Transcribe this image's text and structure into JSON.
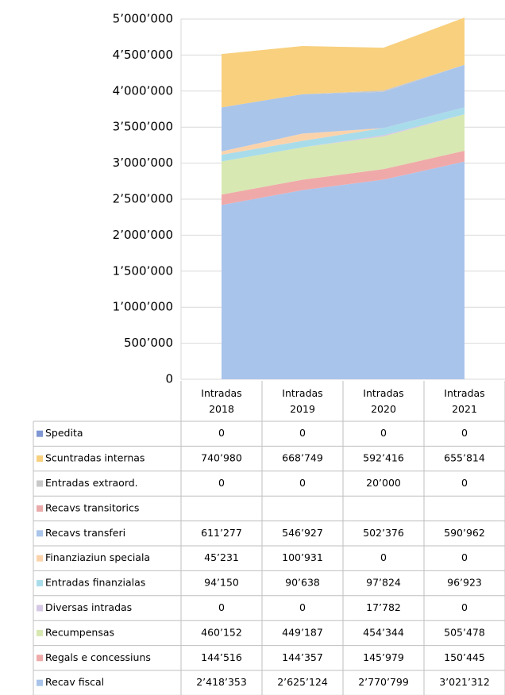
{
  "chart_data": {
    "type": "stacked_area",
    "categories": [
      "Intradas 2018",
      "Intradas 2019",
      "Intradas 2020",
      "Intradas 2021"
    ],
    "ylim": [
      0,
      5000000
    ],
    "yticks": [
      0,
      {
        "value": 500000,
        "label": "500’000"
      },
      {
        "value": 1000000,
        "label": "1’000’000"
      },
      {
        "value": 1500000,
        "label": "1’500’000"
      },
      {
        "value": 2000000,
        "label": "2’000’000"
      },
      {
        "value": 2500000,
        "label": "2’500’000"
      },
      {
        "value": 3000000,
        "label": "3’000’000"
      },
      {
        "value": 3500000,
        "label": "3’500’000"
      },
      {
        "value": 4000000,
        "label": "4’000’000"
      },
      {
        "value": 4500000,
        "label": "4’500’000"
      },
      {
        "value": 5000000,
        "label": "5’000’000"
      }
    ],
    "grid": true,
    "series": [
      {
        "name": "Recav fiscal",
        "color": "#a9c4eb",
        "values": [
          2418353,
          2625124,
          2770799,
          3021312
        ],
        "value_labels": [
          "2’418’353",
          "2’625’124",
          "2’770’799",
          "3’021’312"
        ]
      },
      {
        "name": "Regals e concessiuns",
        "color": "#f0a9a9",
        "values": [
          144516,
          144357,
          145979,
          150445
        ],
        "value_labels": [
          "144’516",
          "144’357",
          "145’979",
          "150’445"
        ]
      },
      {
        "name": "Recumpensas",
        "color": "#d7e8b2",
        "values": [
          460152,
          449187,
          454344,
          505478
        ],
        "value_labels": [
          "460’152",
          "449’187",
          "454’344",
          "505’478"
        ]
      },
      {
        "name": "Diversas intradas",
        "color": "#d4c8e4",
        "values": [
          0,
          0,
          17782,
          0
        ],
        "value_labels": [
          "0",
          "0",
          "17’782",
          "0"
        ]
      },
      {
        "name": "Entradas finanzialas",
        "color": "#a9dcea",
        "values": [
          94150,
          90638,
          97824,
          96923
        ],
        "value_labels": [
          "94’150",
          "90’638",
          "97’824",
          "96’923"
        ]
      },
      {
        "name": "Finanziaziun speciala",
        "color": "#fbd3ab",
        "values": [
          45231,
          100931,
          0,
          0
        ],
        "value_labels": [
          "45’231",
          "100’931",
          "0",
          "0"
        ]
      },
      {
        "name": "Recavs transferi",
        "color": "#aac5ea",
        "values": [
          611277,
          546927,
          502376,
          590962
        ],
        "value_labels": [
          "611’277",
          "546’927",
          "502’376",
          "590’962"
        ]
      },
      {
        "name": "Recavs transitorics",
        "color": "#eaaaaa",
        "values": [
          null,
          null,
          null,
          null
        ],
        "value_labels": [
          null,
          null,
          null,
          null
        ]
      },
      {
        "name": "Entradas extraord.",
        "color": "#c8c8c8",
        "values": [
          0,
          0,
          20000,
          0
        ],
        "value_labels": [
          "0",
          "0",
          "20’000",
          "0"
        ]
      },
      {
        "name": "Scuntradas internas",
        "color": "#f8d07e",
        "values": [
          740980,
          668749,
          592416,
          655814
        ],
        "value_labels": [
          "740’980",
          "668’749",
          "592’416",
          "655’814"
        ]
      },
      {
        "name": "Spedita",
        "color": "#7f97d3",
        "values": [
          0,
          0,
          0,
          0
        ],
        "value_labels": [
          "0",
          "0",
          "0",
          "0"
        ]
      }
    ]
  }
}
